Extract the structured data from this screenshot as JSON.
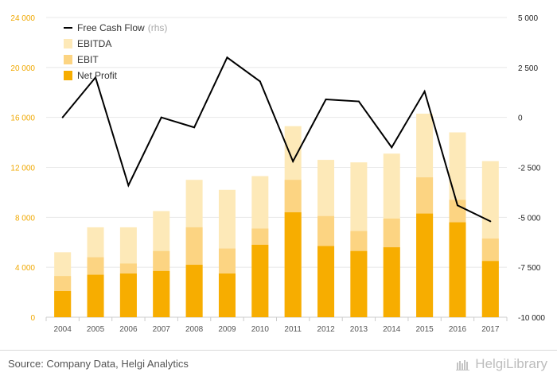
{
  "chart_data": {
    "type": "bar",
    "categories": [
      "2004",
      "2005",
      "2006",
      "2007",
      "2008",
      "2009",
      "2010",
      "2011",
      "2012",
      "2013",
      "2014",
      "2015",
      "2016",
      "2017"
    ],
    "series": [
      {
        "name": "EBITDA",
        "kind": "bar",
        "axis": "left",
        "color": "#fde9b8",
        "values": [
          5200,
          7200,
          7200,
          8500,
          11000,
          10200,
          11300,
          15300,
          12600,
          12400,
          13100,
          16300,
          14800,
          12500
        ]
      },
      {
        "name": "EBIT",
        "kind": "bar",
        "axis": "left",
        "color": "#fcd482",
        "values": [
          3300,
          4800,
          4300,
          5300,
          7200,
          5500,
          7100,
          11000,
          8100,
          6900,
          7900,
          11200,
          9400,
          6300
        ]
      },
      {
        "name": "Net Profit",
        "kind": "bar",
        "axis": "left",
        "color": "#f7ad00",
        "values": [
          2100,
          3400,
          3500,
          3700,
          4200,
          3500,
          5800,
          8400,
          5700,
          5300,
          5600,
          8300,
          7600,
          4500
        ]
      },
      {
        "name": "Free Cash Flow",
        "name_suffix": "(rhs)",
        "kind": "line",
        "axis": "right",
        "color": "#000000",
        "values": [
          0,
          2000,
          -3400,
          0,
          -500,
          3000,
          1800,
          -2200,
          900,
          800,
          -1500,
          1300,
          -4400,
          -5200
        ]
      }
    ],
    "ylim_left": [
      0,
      24000
    ],
    "ylim_right": [
      -10000,
      5000
    ],
    "yticks_left": [
      "0",
      "4 000",
      "8 000",
      "12 000",
      "16 000",
      "20 000",
      "24 000"
    ],
    "yticks_right": [
      "-10 000",
      "-7 500",
      "-5 000",
      "-2 500",
      "0",
      "2 500",
      "5 000"
    ],
    "legend_position": "top-left",
    "grid": "horizontal"
  },
  "footer": {
    "source": "Source: Company Data, Helgi Analytics",
    "brand": "HelgiLibrary"
  }
}
